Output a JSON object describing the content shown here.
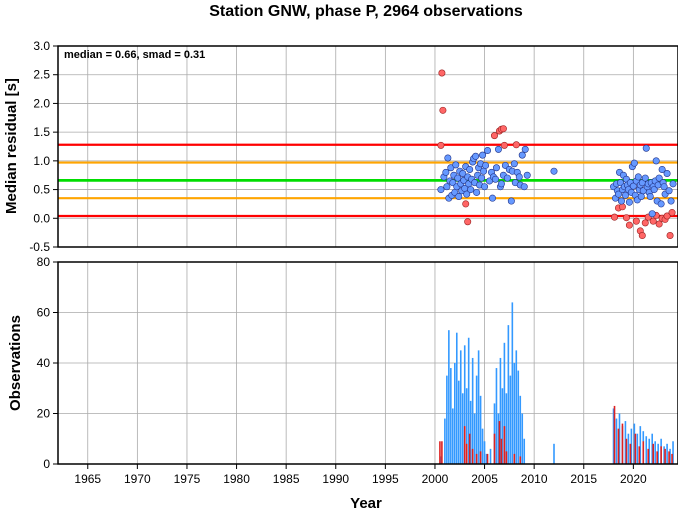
{
  "chart_data": {
    "type": "scatter",
    "title": "Station GNW, phase P, 2964 observations",
    "xlabel": "Year",
    "xlim": [
      1962,
      2024.5
    ],
    "xticks": [
      1965,
      1970,
      1975,
      1980,
      1985,
      1990,
      1995,
      2000,
      2005,
      2010,
      2015,
      2020
    ],
    "grid": true,
    "colors": {
      "inlier": "#6699ff",
      "outlier": "#ff6666",
      "median_line": "#00dd00",
      "smad_line": "#ffa500",
      "limit_line": "#ff0000",
      "bar_main": "#3399ff",
      "bar_outlier": "#dd2222"
    },
    "panels": {
      "residuals": {
        "ylabel": "Median residual [s]",
        "ylim": [
          -0.5,
          3.0
        ],
        "yticks": [
          "3.0",
          "2.5",
          "2.0",
          "1.5",
          "1.0",
          "0.5",
          "0.0",
          "-0.5"
        ],
        "annotation": "median = 0.66, smad = 0.31",
        "reference_lines": {
          "median": 0.66,
          "smad_band": [
            0.35,
            0.97
          ],
          "limits": [
            0.04,
            1.28
          ]
        },
        "inliers": [
          [
            2000.6,
            0.5
          ],
          [
            2000.9,
            0.72
          ],
          [
            2001.1,
            0.8
          ],
          [
            2001.2,
            0.55
          ],
          [
            2001.3,
            1.05
          ],
          [
            2001.4,
            0.35
          ],
          [
            2001.5,
            0.65
          ],
          [
            2001.6,
            0.88
          ],
          [
            2001.7,
            0.4
          ],
          [
            2001.8,
            0.62
          ],
          [
            2001.9,
            0.75
          ],
          [
            2002.0,
            0.45
          ],
          [
            2002.1,
            0.93
          ],
          [
            2002.2,
            0.55
          ],
          [
            2002.3,
            0.7
          ],
          [
            2002.4,
            0.38
          ],
          [
            2002.5,
            0.82
          ],
          [
            2002.6,
            0.6
          ],
          [
            2002.7,
            0.48
          ],
          [
            2002.8,
            0.78
          ],
          [
            2002.9,
            0.66
          ],
          [
            2003.0,
            0.52
          ],
          [
            2003.1,
            0.9
          ],
          [
            2003.2,
            0.42
          ],
          [
            2003.3,
            0.72
          ],
          [
            2003.4,
            0.6
          ],
          [
            2003.5,
            0.85
          ],
          [
            2003.6,
            0.5
          ],
          [
            2003.7,
            0.68
          ],
          [
            2003.8,
            0.98
          ],
          [
            2003.9,
            1.04
          ],
          [
            2004.0,
            0.62
          ],
          [
            2004.1,
            1.08
          ],
          [
            2004.2,
            0.45
          ],
          [
            2004.3,
            0.75
          ],
          [
            2004.4,
            0.88
          ],
          [
            2004.5,
            0.58
          ],
          [
            2004.6,
            0.95
          ],
          [
            2004.7,
            0.7
          ],
          [
            2004.8,
            1.1
          ],
          [
            2004.9,
            0.82
          ],
          [
            2005.0,
            0.55
          ],
          [
            2005.1,
            0.92
          ],
          [
            2005.3,
            1.18
          ],
          [
            2005.5,
            0.65
          ],
          [
            2005.7,
            0.8
          ],
          [
            2005.8,
            0.35
          ],
          [
            2005.9,
            0.72
          ],
          [
            2006.1,
            0.68
          ],
          [
            2006.2,
            0.88
          ],
          [
            2006.4,
            1.2
          ],
          [
            2006.6,
            0.55
          ],
          [
            2006.7,
            0.6
          ],
          [
            2006.9,
            0.75
          ],
          [
            2007.1,
            0.92
          ],
          [
            2007.3,
            0.7
          ],
          [
            2007.5,
            0.85
          ],
          [
            2007.7,
            0.3
          ],
          [
            2007.8,
            0.82
          ],
          [
            2008.0,
            0.95
          ],
          [
            2008.1,
            0.62
          ],
          [
            2008.3,
            0.8
          ],
          [
            2008.5,
            0.72
          ],
          [
            2008.6,
            0.58
          ],
          [
            2008.8,
            1.1
          ],
          [
            2009.0,
            0.55
          ],
          [
            2009.1,
            1.2
          ],
          [
            2009.3,
            0.75
          ],
          [
            2012.0,
            0.82
          ],
          [
            2018.0,
            0.55
          ],
          [
            2018.2,
            0.35
          ],
          [
            2018.3,
            0.6
          ],
          [
            2018.4,
            0.48
          ],
          [
            2018.5,
            0.42
          ],
          [
            2018.6,
            0.8
          ],
          [
            2018.7,
            0.62
          ],
          [
            2018.8,
            0.3
          ],
          [
            2018.9,
            0.5
          ],
          [
            2019.0,
            0.75
          ],
          [
            2019.1,
            0.55
          ],
          [
            2019.2,
            0.4
          ],
          [
            2019.3,
            0.68
          ],
          [
            2019.4,
            0.58
          ],
          [
            2019.5,
            0.5
          ],
          [
            2019.6,
            0.28
          ],
          [
            2019.7,
            0.62
          ],
          [
            2019.8,
            0.45
          ],
          [
            2019.9,
            0.9
          ],
          [
            2020.0,
            0.56
          ],
          [
            2020.1,
            0.96
          ],
          [
            2020.2,
            0.4
          ],
          [
            2020.3,
            0.65
          ],
          [
            2020.4,
            0.32
          ],
          [
            2020.5,
            0.72
          ],
          [
            2020.6,
            0.5
          ],
          [
            2020.7,
            0.58
          ],
          [
            2020.8,
            0.38
          ],
          [
            2020.9,
            0.62
          ],
          [
            2021.0,
            0.48
          ],
          [
            2021.2,
            0.7
          ],
          [
            2021.3,
            1.22
          ],
          [
            2021.4,
            0.55
          ],
          [
            2021.5,
            0.6
          ],
          [
            2021.6,
            0.45
          ],
          [
            2021.7,
            0.38
          ],
          [
            2021.8,
            0.62
          ],
          [
            2021.9,
            0.08
          ],
          [
            2022.0,
            0.55
          ],
          [
            2022.1,
            0.5
          ],
          [
            2022.2,
            0.65
          ],
          [
            2022.3,
            1.0
          ],
          [
            2022.4,
            0.3
          ],
          [
            2022.5,
            0.58
          ],
          [
            2022.6,
            0.7
          ],
          [
            2022.8,
            0.25
          ],
          [
            2022.9,
            0.85
          ],
          [
            2023.0,
            0.62
          ],
          [
            2023.1,
            0.55
          ],
          [
            2023.2,
            0.42
          ],
          [
            2023.4,
            0.78
          ],
          [
            2023.6,
            0.48
          ],
          [
            2023.8,
            0.3
          ],
          [
            2024.0,
            0.6
          ]
        ],
        "outliers": [
          [
            2000.7,
            2.53
          ],
          [
            2000.8,
            1.88
          ],
          [
            2000.6,
            1.27
          ],
          [
            2003.3,
            -0.06
          ],
          [
            2003.1,
            0.25
          ],
          [
            2006.0,
            1.44
          ],
          [
            2006.5,
            1.52
          ],
          [
            2006.7,
            1.55
          ],
          [
            2006.9,
            1.56
          ],
          [
            2007.0,
            1.27
          ],
          [
            2008.2,
            1.28
          ],
          [
            2018.1,
            0.02
          ],
          [
            2018.5,
            0.18
          ],
          [
            2018.9,
            0.2
          ],
          [
            2019.3,
            0.01
          ],
          [
            2019.6,
            -0.12
          ],
          [
            2020.3,
            -0.05
          ],
          [
            2020.7,
            -0.22
          ],
          [
            2020.9,
            -0.3
          ],
          [
            2021.2,
            -0.08
          ],
          [
            2021.5,
            0.02
          ],
          [
            2022.0,
            -0.05
          ],
          [
            2022.3,
            0.05
          ],
          [
            2022.6,
            -0.1
          ],
          [
            2022.9,
            0.0
          ],
          [
            2023.2,
            -0.02
          ],
          [
            2023.4,
            0.04
          ],
          [
            2023.7,
            -0.3
          ],
          [
            2023.9,
            0.1
          ]
        ]
      },
      "observations": {
        "ylabel": "Observations",
        "ylim": [
          0,
          80
        ],
        "yticks": [
          "80",
          "60",
          "40",
          "20",
          "0"
        ],
        "blue_bars": [
          [
            2000.6,
            3
          ],
          [
            2001.0,
            18
          ],
          [
            2001.2,
            35
          ],
          [
            2001.4,
            53
          ],
          [
            2001.6,
            38
          ],
          [
            2001.8,
            22
          ],
          [
            2002.0,
            40
          ],
          [
            2002.2,
            52
          ],
          [
            2002.4,
            33
          ],
          [
            2002.6,
            45
          ],
          [
            2002.8,
            28
          ],
          [
            2003.0,
            47
          ],
          [
            2003.2,
            30
          ],
          [
            2003.4,
            50
          ],
          [
            2003.6,
            25
          ],
          [
            2003.8,
            42
          ],
          [
            2004.0,
            20
          ],
          [
            2004.2,
            35
          ],
          [
            2004.4,
            45
          ],
          [
            2004.6,
            27
          ],
          [
            2004.8,
            14
          ],
          [
            2005.0,
            9
          ],
          [
            2005.2,
            4
          ],
          [
            2005.6,
            6
          ],
          [
            2006.0,
            24
          ],
          [
            2006.2,
            38
          ],
          [
            2006.4,
            20
          ],
          [
            2006.6,
            42
          ],
          [
            2006.8,
            30
          ],
          [
            2007.0,
            48
          ],
          [
            2007.2,
            28
          ],
          [
            2007.4,
            55
          ],
          [
            2007.6,
            35
          ],
          [
            2007.8,
            64
          ],
          [
            2008.0,
            40
          ],
          [
            2008.2,
            45
          ],
          [
            2008.4,
            37
          ],
          [
            2008.6,
            27
          ],
          [
            2008.8,
            20
          ],
          [
            2009.0,
            10
          ],
          [
            2012.0,
            8
          ],
          [
            2018.0,
            22
          ],
          [
            2018.3,
            18
          ],
          [
            2018.6,
            20
          ],
          [
            2018.9,
            15
          ],
          [
            2019.2,
            17
          ],
          [
            2019.5,
            12
          ],
          [
            2019.8,
            14
          ],
          [
            2020.1,
            16
          ],
          [
            2020.4,
            12
          ],
          [
            2020.7,
            15
          ],
          [
            2021.0,
            13
          ],
          [
            2021.3,
            11
          ],
          [
            2021.6,
            10
          ],
          [
            2021.9,
            12
          ],
          [
            2022.2,
            9
          ],
          [
            2022.5,
            8
          ],
          [
            2022.8,
            10
          ],
          [
            2023.1,
            7
          ],
          [
            2023.4,
            8
          ],
          [
            2023.7,
            6
          ],
          [
            2024.0,
            9
          ]
        ],
        "red_bars": [
          [
            2000.5,
            9
          ],
          [
            2000.7,
            9
          ],
          [
            2003.0,
            15
          ],
          [
            2003.2,
            8
          ],
          [
            2003.5,
            12
          ],
          [
            2003.8,
            6
          ],
          [
            2004.2,
            4
          ],
          [
            2004.6,
            5
          ],
          [
            2005.3,
            4
          ],
          [
            2006.0,
            12
          ],
          [
            2006.5,
            17
          ],
          [
            2006.7,
            10
          ],
          [
            2007.0,
            15
          ],
          [
            2007.2,
            5
          ],
          [
            2008.0,
            4
          ],
          [
            2008.6,
            3
          ],
          [
            2018.1,
            23
          ],
          [
            2018.5,
            14
          ],
          [
            2018.9,
            16
          ],
          [
            2019.3,
            10
          ],
          [
            2019.7,
            8
          ],
          [
            2020.2,
            12
          ],
          [
            2020.6,
            7
          ],
          [
            2021.0,
            9
          ],
          [
            2021.5,
            6
          ],
          [
            2022.0,
            8
          ],
          [
            2022.4,
            5
          ],
          [
            2022.8,
            7
          ],
          [
            2023.2,
            6
          ],
          [
            2023.6,
            5
          ],
          [
            2023.9,
            4
          ]
        ]
      }
    }
  }
}
